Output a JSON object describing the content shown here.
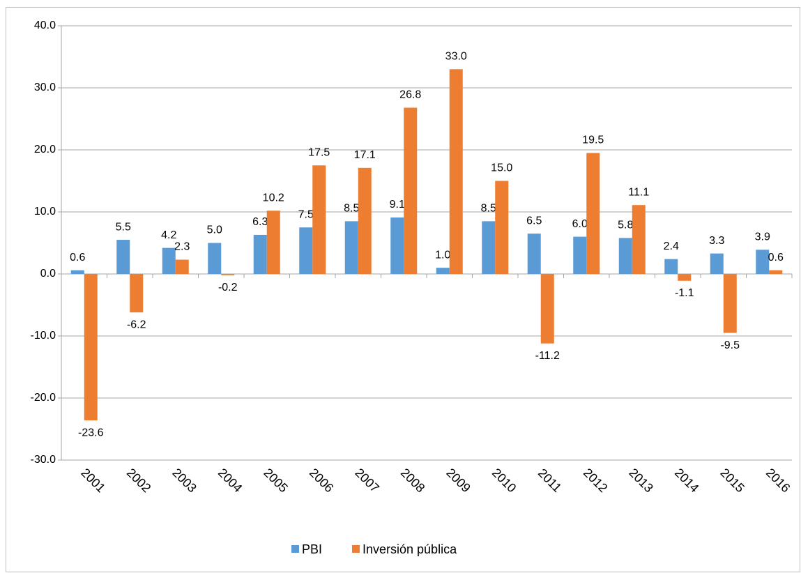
{
  "chart_data": {
    "type": "bar",
    "categories": [
      "2001",
      "2002",
      "2003",
      "2004",
      "2005",
      "2006",
      "2007",
      "2008",
      "2009",
      "2010",
      "2011",
      "2012",
      "2013",
      "2014",
      "2015",
      "2016"
    ],
    "series": [
      {
        "name": "PBI",
        "color": "#5b9bd5",
        "values": [
          0.6,
          5.5,
          4.2,
          5.0,
          6.3,
          7.5,
          8.5,
          9.1,
          1.0,
          8.5,
          6.5,
          6.0,
          5.8,
          2.4,
          3.3,
          3.9
        ],
        "value_labels": [
          "0.6",
          "5.5",
          "4.2",
          "5.0",
          "6.3",
          "7.5",
          "8.5",
          "9.1",
          "1.0",
          "8.5",
          "6.5",
          "6.0",
          "5.8",
          "2.4",
          "3.3",
          "3.9"
        ]
      },
      {
        "name": "Inversión pública",
        "color": "#ed7d31",
        "values": [
          -23.6,
          -6.2,
          2.3,
          -0.2,
          10.2,
          17.5,
          17.1,
          26.8,
          33.0,
          15.0,
          -11.2,
          19.5,
          11.1,
          -1.1,
          -9.5,
          0.6
        ],
        "value_labels": [
          "-23.6",
          "-6.2",
          "2.3",
          "-0.2",
          "10.2",
          "17.5",
          "17.1",
          "26.8",
          "33.0",
          "15.0",
          "-11.2",
          "19.5",
          "11.1",
          "-1.1",
          "-9.5",
          "0.6"
        ]
      }
    ],
    "ylim": [
      -30,
      40
    ],
    "yticks": [
      {
        "value": -30,
        "label": "-30.0"
      },
      {
        "value": -20,
        "label": "-20.0"
      },
      {
        "value": -10,
        "label": "-10.0"
      },
      {
        "value": 0,
        "label": "0.0"
      },
      {
        "value": 10,
        "label": "10.0"
      },
      {
        "value": 20,
        "label": "20.0"
      },
      {
        "value": 30,
        "label": "30.0"
      },
      {
        "value": 40,
        "label": "40.0"
      }
    ],
    "grid": true,
    "legend": "bottom"
  }
}
